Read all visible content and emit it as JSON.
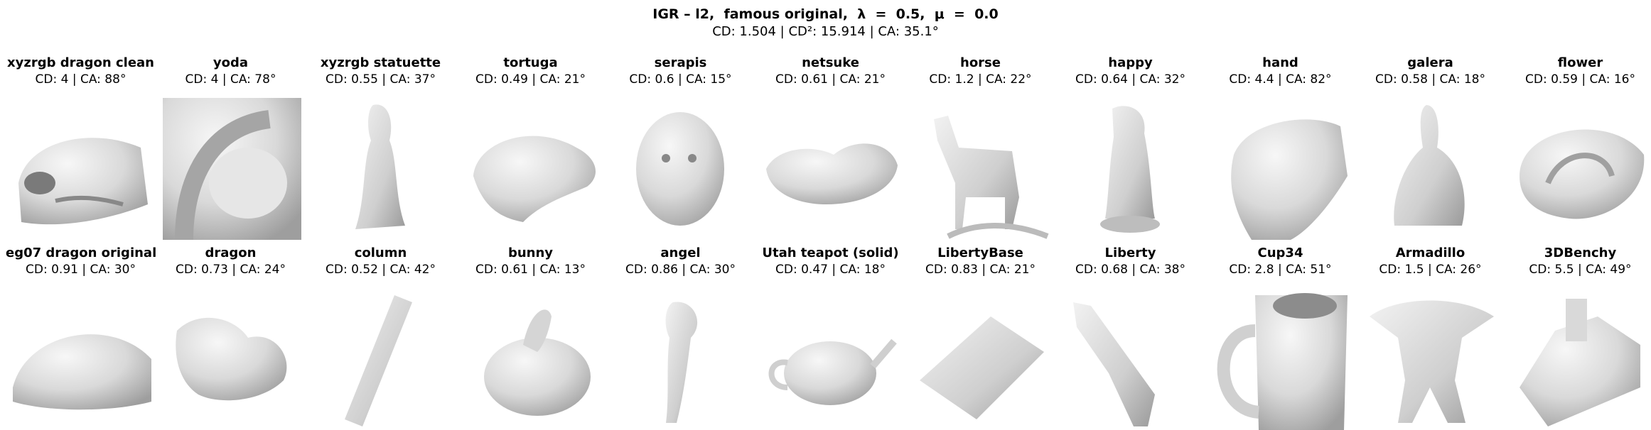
{
  "figure": {
    "title": "IGR – l2,  famous original,  λ  =  0.5,  μ  =  0.0",
    "subtitle": "CD: 1.504 | CD²: 15.914 | CA: 35.1°"
  },
  "panels": [
    {
      "name": "xyzrgb dragon clean",
      "metrics": "CD: 4 | CA: 88°",
      "icon": "dragon-head-closeup-icon"
    },
    {
      "name": "yoda",
      "metrics": "CD: 4 | CA: 78°",
      "icon": "yoda-closeup-icon"
    },
    {
      "name": "xyzrgb statuette",
      "metrics": "CD: 0.55 | CA: 37°",
      "icon": "statuette-icon"
    },
    {
      "name": "tortuga",
      "metrics": "CD: 0.49 | CA: 21°",
      "icon": "tortoise-icon"
    },
    {
      "name": "serapis",
      "metrics": "CD: 0.6 | CA: 15°",
      "icon": "bust-head-icon"
    },
    {
      "name": "netsuke",
      "metrics": "CD: 0.61 | CA: 21°",
      "icon": "netsuke-icon"
    },
    {
      "name": "horse",
      "metrics": "CD: 1.2 | CA: 22°",
      "icon": "horse-icon"
    },
    {
      "name": "happy",
      "metrics": "CD: 0.64 | CA: 32°",
      "icon": "happy-buddha-icon"
    },
    {
      "name": "hand",
      "metrics": "CD: 4.4 | CA: 82°",
      "icon": "hand-blob-icon"
    },
    {
      "name": "galera",
      "metrics": "CD: 0.58 | CA: 18°",
      "icon": "galera-figure-icon"
    },
    {
      "name": "flower",
      "metrics": "CD: 0.59 | CA: 16°",
      "icon": "flower-swirl-icon"
    },
    {
      "name": "eg07 dragon original",
      "metrics": "CD: 0.91 | CA: 30°",
      "icon": "dragon-shell-icon"
    },
    {
      "name": "dragon",
      "metrics": "CD: 0.73 | CA: 24°",
      "icon": "dragon-icon"
    },
    {
      "name": "column",
      "metrics": "CD: 0.52 | CA: 42°",
      "icon": "column-icon"
    },
    {
      "name": "bunny",
      "metrics": "CD: 0.61 | CA: 13°",
      "icon": "bunny-icon"
    },
    {
      "name": "angel",
      "metrics": "CD: 0.86 | CA: 30°",
      "icon": "angel-icon"
    },
    {
      "name": "Utah teapot (solid)",
      "metrics": "CD: 0.47 | CA: 18°",
      "icon": "teapot-icon"
    },
    {
      "name": "LibertyBase",
      "metrics": "CD: 0.83 | CA: 21°",
      "icon": "liberty-base-icon"
    },
    {
      "name": "Liberty",
      "metrics": "CD: 0.68 | CA: 38°",
      "icon": "liberty-statue-icon"
    },
    {
      "name": "Cup34",
      "metrics": "CD: 2.8 | CA: 51°",
      "icon": "cup-icon"
    },
    {
      "name": "Armadillo",
      "metrics": "CD: 1.5 | CA: 26°",
      "icon": "armadillo-icon"
    },
    {
      "name": "3DBenchy",
      "metrics": "CD: 5.5 | CA: 49°",
      "icon": "benchy-boat-icon"
    }
  ]
}
